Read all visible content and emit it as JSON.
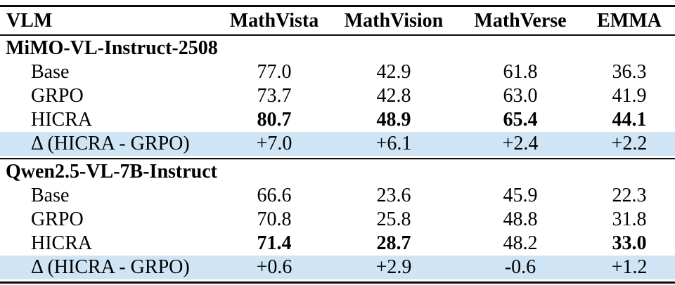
{
  "table": {
    "highlight_color": "#cfe5f5",
    "columns": {
      "vlm": "VLM",
      "mathvista": "MathVista",
      "mathvision": "MathVision",
      "mathverse": "MathVerse",
      "emma": "EMMA"
    },
    "sections": [
      {
        "title": "MiMO-VL-Instruct-2508",
        "rows": [
          {
            "label": "Base",
            "values": [
              "77.0",
              "42.9",
              "61.8",
              "36.3"
            ]
          },
          {
            "label": "GRPO",
            "values": [
              "73.7",
              "42.8",
              "63.0",
              "41.9"
            ]
          },
          {
            "label": "HICRA",
            "values": [
              "80.7",
              "48.9",
              "65.4",
              "44.1"
            ]
          },
          {
            "label": "Δ (HICRA - GRPO)",
            "values": [
              "+7.0",
              "+6.1",
              "+2.4",
              "+2.2"
            ]
          }
        ]
      },
      {
        "title": "Qwen2.5-VL-7B-Instruct",
        "rows": [
          {
            "label": "Base",
            "values": [
              "66.6",
              "23.6",
              "45.9",
              "22.3"
            ]
          },
          {
            "label": "GRPO",
            "values": [
              "70.8",
              "25.8",
              "48.8",
              "31.8"
            ]
          },
          {
            "label": "HICRA",
            "values": [
              "71.4",
              "28.7",
              "48.2",
              "33.0"
            ]
          },
          {
            "label": "Δ (HICRA - GRPO)",
            "values": [
              "+0.6",
              "+2.9",
              "-0.6",
              "+1.2"
            ]
          }
        ]
      }
    ]
  }
}
